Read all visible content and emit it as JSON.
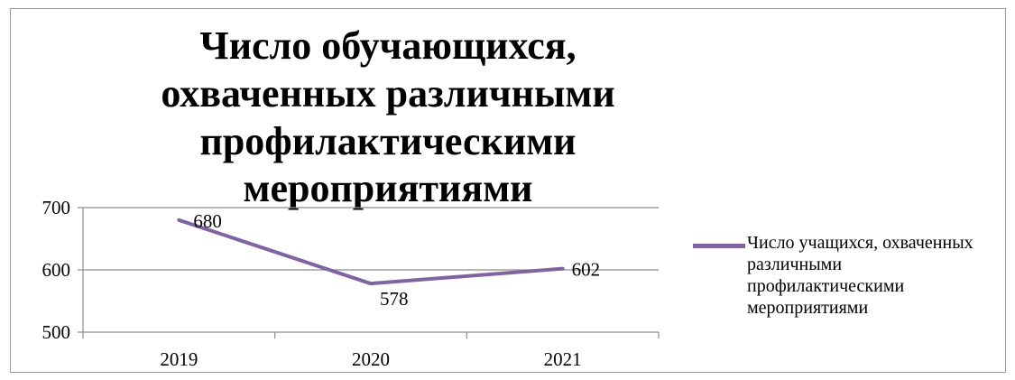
{
  "chart_data": {
    "type": "line",
    "title": "Число обучающихся, охваченных различными профилактическими мероприятиями",
    "categories": [
      "2019",
      "2020",
      "2021"
    ],
    "series": [
      {
        "name": "Число учащихся, охваченных различными профилактическими мероприятиями",
        "values": [
          680,
          578,
          602
        ],
        "color": "#8064a2"
      }
    ],
    "ylim": [
      500,
      700
    ],
    "yticks": [
      500,
      600,
      700
    ],
    "data_labels": [
      "680",
      "578",
      "602"
    ],
    "grid": true,
    "legend_position": "right"
  }
}
